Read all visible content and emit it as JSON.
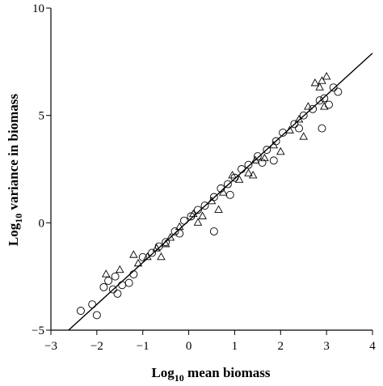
{
  "chart_data": {
    "type": "scatter",
    "title": "",
    "xlabel": {
      "pre": "Log",
      "sub": "10",
      "post": " mean biomass"
    },
    "ylabel": {
      "pre": "Log",
      "sub": "10",
      "post": " variance in biomass"
    },
    "xlim": [
      -3,
      4
    ],
    "ylim": [
      -5,
      10
    ],
    "xticks": [
      "−3",
      "−2",
      "−1",
      "0",
      "1",
      "2",
      "3",
      "4"
    ],
    "yticks": [
      "−5",
      "0",
      "5",
      "10"
    ],
    "xtick_values": [
      -3,
      -2,
      -1,
      0,
      1,
      2,
      3,
      4
    ],
    "ytick_values": [
      -5,
      0,
      5,
      10
    ],
    "grid": false,
    "legend": "none",
    "fit_line": {
      "slope": 1.95,
      "intercept": 0.1,
      "x_range": [
        -2.65,
        4.0
      ]
    },
    "series": [
      {
        "marker": "circle",
        "points": [
          [
            -2.35,
            -4.1
          ],
          [
            -2.1,
            -3.8
          ],
          [
            -2.0,
            -4.3
          ],
          [
            -1.85,
            -3.0
          ],
          [
            -1.75,
            -2.7
          ],
          [
            -1.65,
            -3.1
          ],
          [
            -1.6,
            -2.5
          ],
          [
            -1.55,
            -3.3
          ],
          [
            -1.45,
            -2.9
          ],
          [
            -1.3,
            -2.8
          ],
          [
            -1.2,
            -2.4
          ],
          [
            -1.0,
            -1.6
          ],
          [
            -0.8,
            -1.4
          ],
          [
            -0.65,
            -1.1
          ],
          [
            -0.5,
            -0.9
          ],
          [
            -0.3,
            -0.4
          ],
          [
            -0.1,
            0.1
          ],
          [
            0.05,
            0.3
          ],
          [
            0.2,
            0.6
          ],
          [
            0.35,
            0.8
          ],
          [
            0.55,
            1.2
          ],
          [
            0.7,
            1.6
          ],
          [
            0.85,
            1.8
          ],
          [
            1.0,
            2.1
          ],
          [
            1.15,
            2.5
          ],
          [
            1.3,
            2.7
          ],
          [
            1.5,
            3.1
          ],
          [
            1.7,
            3.4
          ],
          [
            1.9,
            3.8
          ],
          [
            2.05,
            4.2
          ],
          [
            2.3,
            4.6
          ],
          [
            2.5,
            5.0
          ],
          [
            2.7,
            5.3
          ],
          [
            2.85,
            5.7
          ],
          [
            2.95,
            5.8
          ],
          [
            3.05,
            5.5
          ],
          [
            3.15,
            6.3
          ],
          [
            3.25,
            6.1
          ],
          [
            2.9,
            4.4
          ],
          [
            0.55,
            -0.4
          ],
          [
            1.6,
            2.8
          ],
          [
            1.85,
            2.9
          ],
          [
            2.4,
            4.4
          ],
          [
            0.9,
            1.3
          ],
          [
            -0.2,
            -0.5
          ]
        ]
      },
      {
        "marker": "triangle",
        "points": [
          [
            -1.8,
            -2.4
          ],
          [
            -1.5,
            -2.2
          ],
          [
            -1.2,
            -1.5
          ],
          [
            -0.9,
            -1.6
          ],
          [
            -0.7,
            -1.2
          ],
          [
            -0.4,
            -0.7
          ],
          [
            -0.2,
            -0.2
          ],
          [
            0.1,
            0.4
          ],
          [
            0.3,
            0.3
          ],
          [
            0.5,
            1.0
          ],
          [
            0.75,
            1.4
          ],
          [
            0.95,
            2.2
          ],
          [
            1.1,
            2.0
          ],
          [
            1.3,
            2.3
          ],
          [
            1.45,
            2.9
          ],
          [
            1.65,
            3.0
          ],
          [
            1.85,
            3.6
          ],
          [
            2.0,
            3.3
          ],
          [
            2.2,
            4.3
          ],
          [
            2.4,
            4.8
          ],
          [
            2.6,
            5.4
          ],
          [
            2.75,
            6.5
          ],
          [
            2.9,
            6.6
          ],
          [
            2.85,
            6.3
          ],
          [
            3.0,
            6.8
          ],
          [
            2.95,
            5.4
          ],
          [
            1.4,
            2.2
          ],
          [
            0.2,
            0.0
          ],
          [
            -0.5,
            -1.0
          ],
          [
            -1.1,
            -1.9
          ],
          [
            -0.6,
            -1.6
          ],
          [
            2.5,
            4.0
          ],
          [
            0.65,
            0.6
          ]
        ]
      }
    ]
  }
}
